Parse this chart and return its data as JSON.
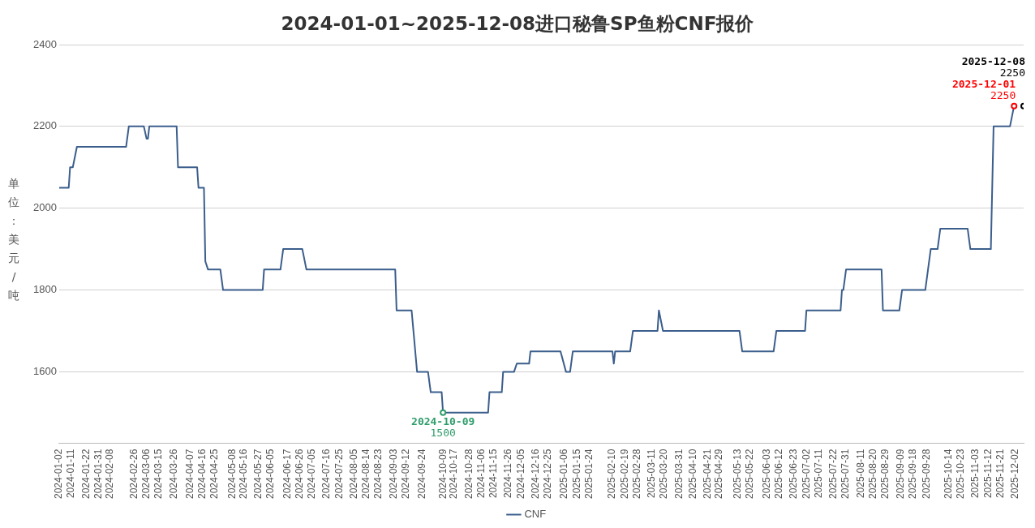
{
  "chart_data": {
    "type": "line",
    "title": "2024-01-01~2025-12-08进口秘鲁SP鱼粉CNF报价",
    "ylabel": "单位：美元/吨",
    "series": [
      {
        "name": "CNF",
        "color": "#3b5e8c",
        "x": [
          "2024-01-02",
          "2024-01-09",
          "2024-01-10",
          "2024-01-12",
          "2024-01-15",
          "2024-02-20",
          "2024-02-22",
          "2024-03-04",
          "2024-03-06",
          "2024-03-07",
          "2024-03-08",
          "2024-03-28",
          "2024-03-29",
          "2024-04-12",
          "2024-04-13",
          "2024-04-17",
          "2024-04-18",
          "2024-04-20",
          "2024-04-29",
          "2024-05-01",
          "2024-05-30",
          "2024-05-31",
          "2024-06-12",
          "2024-06-14",
          "2024-06-28",
          "2024-07-01",
          "2024-09-04",
          "2024-09-05",
          "2024-09-16",
          "2024-09-20",
          "2024-09-28",
          "2024-09-30",
          "2024-10-08",
          "2024-10-09",
          "2024-11-11",
          "2024-11-12",
          "2024-11-21",
          "2024-11-22",
          "2024-11-30",
          "2024-12-02",
          "2024-12-11",
          "2024-12-12",
          "2025-01-03",
          "2025-01-07",
          "2025-01-10",
          "2025-01-12",
          "2025-02-10",
          "2025-02-11",
          "2025-02-12",
          "2025-02-23",
          "2025-02-25",
          "2025-03-15",
          "2025-03-16",
          "2025-03-19",
          "2025-05-14",
          "2025-05-16",
          "2025-06-08",
          "2025-06-10",
          "2025-07-01",
          "2025-07-02",
          "2025-07-27",
          "2025-07-28",
          "2025-07-29",
          "2025-07-31",
          "2025-08-26",
          "2025-08-27",
          "2025-09-08",
          "2025-09-10",
          "2025-09-27",
          "2025-10-01",
          "2025-10-06",
          "2025-10-08",
          "2025-10-28",
          "2025-10-30",
          "2025-11-14",
          "2025-11-16",
          "2025-11-28",
          "2025-12-01"
        ],
        "values": [
          2050,
          2050,
          2100,
          2100,
          2150,
          2150,
          2200,
          2200,
          2170,
          2170,
          2200,
          2200,
          2100,
          2100,
          2050,
          2050,
          1870,
          1850,
          1850,
          1800,
          1800,
          1850,
          1850,
          1900,
          1900,
          1850,
          1850,
          1750,
          1750,
          1600,
          1600,
          1550,
          1550,
          1500,
          1500,
          1550,
          1550,
          1600,
          1600,
          1620,
          1620,
          1650,
          1650,
          1600,
          1600,
          1650,
          1650,
          1620,
          1650,
          1650,
          1700,
          1700,
          1750,
          1700,
          1700,
          1650,
          1650,
          1700,
          1700,
          1750,
          1750,
          1800,
          1800,
          1850,
          1850,
          1750,
          1750,
          1800,
          1800,
          1900,
          1900,
          1950,
          1950,
          1900,
          1900,
          2200,
          2200,
          2250
        ]
      },
      {
        "type": "scatter",
        "marker": "circle",
        "color": "#2e9d6b",
        "x": [
          "2024-10-09"
        ],
        "values": [
          1500
        ]
      },
      {
        "type": "scatter",
        "marker": "circle",
        "color": "#ff0000",
        "x": [
          "2025-12-01"
        ],
        "values": [
          2250
        ]
      },
      {
        "type": "scatter",
        "marker": "circle",
        "color": "#000000",
        "x": [
          "2025-12-08"
        ],
        "values": [
          2250
        ]
      }
    ],
    "annotations": [
      {
        "text": "2025-12-08\n2250",
        "x": "2025-12-08",
        "y": 2250
      },
      {
        "text": "2025-12-01\n2250",
        "x": "2025-12-01",
        "y": 2250
      },
      {
        "text": "2024-10-09\n1500",
        "x": "2024-10-09",
        "y": 1500
      }
    ],
    "xlim": [
      "2024-01-02",
      "2025-12-08"
    ],
    "xticks": [
      "2024-01-02",
      "2024-01-11",
      "2024-01-22",
      "2024-01-31",
      "2024-02-08",
      "2024-02-26",
      "2024-03-06",
      "2024-03-15",
      "2024-03-26",
      "2024-04-07",
      "2024-04-16",
      "2024-04-25",
      "2024-05-08",
      "2024-05-16",
      "2024-05-27",
      "2024-06-05",
      "2024-06-17",
      "2024-06-26",
      "2024-07-05",
      "2024-07-16",
      "2024-07-25",
      "2024-08-05",
      "2024-08-14",
      "2024-08-23",
      "2024-09-03",
      "2024-09-12",
      "2024-09-24",
      "2024-10-09",
      "2024-10-17",
      "2024-10-28",
      "2024-11-06",
      "2024-11-15",
      "2024-11-26",
      "2024-12-05",
      "2024-12-16",
      "2024-12-25",
      "2025-01-06",
      "2025-01-15",
      "2025-01-24",
      "2025-02-10",
      "2025-02-19",
      "2025-02-28",
      "2025-03-11",
      "2025-03-20",
      "2025-03-31",
      "2025-04-10",
      "2025-04-21",
      "2025-04-29",
      "2025-05-13",
      "2025-05-22",
      "2025-06-03",
      "2025-06-12",
      "2025-06-23",
      "2025-07-02",
      "2025-07-11",
      "2025-07-22",
      "2025-07-31",
      "2025-08-11",
      "2025-08-20",
      "2025-08-29",
      "2025-09-09",
      "2025-09-18",
      "2025-09-28",
      "2025-10-14",
      "2025-10-23",
      "2025-11-03",
      "2025-11-12",
      "2025-11-21",
      "2025-12-02"
    ],
    "ylim": [
      1425,
      2400
    ],
    "yticks": [
      1600,
      1800,
      2000,
      2200,
      2400
    ],
    "grid": "y",
    "legend": "bottom",
    "marker": "none",
    "line_style": "solid"
  }
}
